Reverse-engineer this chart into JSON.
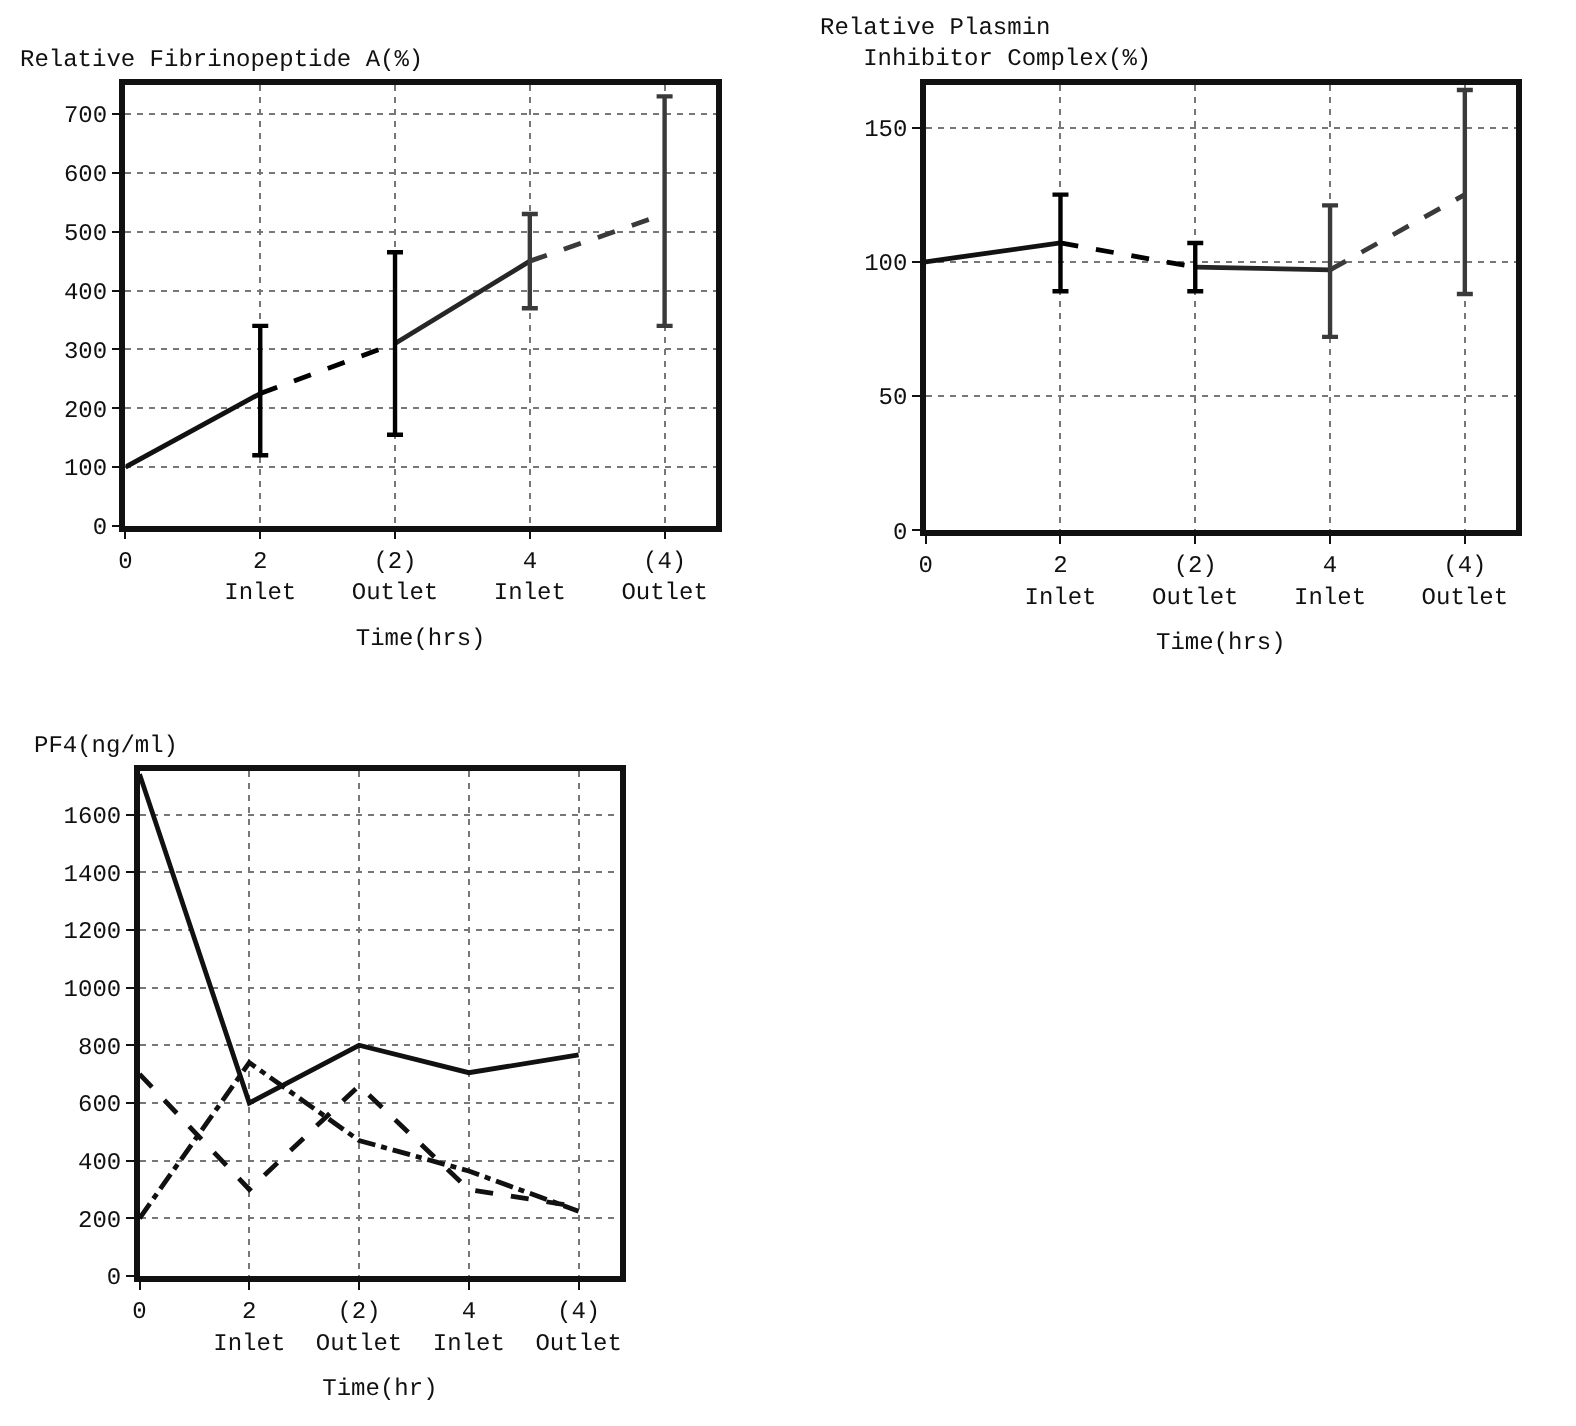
{
  "chart_data": [
    {
      "type": "line",
      "ylabel": "Relative Fibrinopeptide A(%)",
      "xlabel": "Time(hrs)",
      "categories": [
        "0",
        "2\nInlet",
        "(2)\nOutlet",
        "4\nInlet",
        "(4)\nOutlet"
      ],
      "ylim": [
        0,
        750
      ],
      "yticks": [
        0,
        100,
        200,
        300,
        400,
        500,
        600,
        700
      ],
      "grid": true,
      "marker": "none",
      "series": [
        {
          "color": "#111111",
          "line_style": "solid",
          "values": [
            100,
            225,
            null,
            null,
            null
          ]
        },
        {
          "color": "#000000",
          "line_style": "dashed",
          "values": [
            null,
            225,
            310,
            null,
            null
          ],
          "errors": [
            null,
            [
              120,
              340
            ],
            [
              155,
              465
            ],
            null,
            null
          ]
        },
        {
          "color": "#262626",
          "line_style": "solid",
          "values": [
            null,
            null,
            310,
            450,
            null
          ]
        },
        {
          "color": "#3a3a3a",
          "line_style": "dashed",
          "values": [
            null,
            null,
            null,
            450,
            530
          ],
          "errors": [
            null,
            null,
            null,
            [
              370,
              530
            ],
            [
              340,
              730
            ]
          ]
        }
      ]
    },
    {
      "type": "line",
      "ylabel": "Relative Plasmin\n   Inhibitor Complex(%)",
      "xlabel": "Time(hrs)",
      "categories": [
        "0",
        "2\nInlet",
        "(2)\nOutlet",
        "4\nInlet",
        "(4)\nOutlet"
      ],
      "ylim": [
        0,
        166
      ],
      "yticks": [
        0,
        50,
        100,
        150
      ],
      "grid": true,
      "marker": "none",
      "series": [
        {
          "color": "#111111",
          "line_style": "solid",
          "values": [
            100,
            107,
            null,
            null,
            null
          ]
        },
        {
          "color": "#000000",
          "line_style": "dashed",
          "values": [
            null,
            107,
            98,
            null,
            null
          ],
          "errors": [
            null,
            [
              89,
              125
            ],
            [
              89,
              107
            ],
            null,
            null
          ]
        },
        {
          "color": "#262626",
          "line_style": "solid",
          "values": [
            null,
            null,
            98,
            97,
            null
          ]
        },
        {
          "color": "#3a3a3a",
          "line_style": "dashed",
          "values": [
            null,
            null,
            null,
            97,
            125
          ],
          "errors": [
            null,
            null,
            null,
            [
              72,
              121
            ],
            [
              88,
              164
            ]
          ]
        }
      ]
    },
    {
      "type": "line",
      "ylabel": "PF4(ng/ml)",
      "xlabel": "Time(hr)",
      "categories": [
        "0",
        "2\nInlet",
        "(2)\nOutlet",
        "4\nInlet",
        "(4)\nOutlet"
      ],
      "ylim": [
        0,
        1750
      ],
      "yticks": [
        0,
        200,
        400,
        600,
        800,
        1000,
        1200,
        1400,
        1600
      ],
      "grid": true,
      "marker": "none",
      "series": [
        {
          "color": "#111111",
          "line_style": "solid",
          "values": [
            1740,
            600,
            800,
            705,
            767
          ]
        },
        {
          "color": "#111111",
          "line_style": "dashed",
          "values": [
            700,
            300,
            660,
            300,
            240
          ]
        },
        {
          "color": "#111111",
          "line_style": "dashdot",
          "values": [
            200,
            740,
            470,
            364,
            225
          ]
        }
      ]
    }
  ]
}
